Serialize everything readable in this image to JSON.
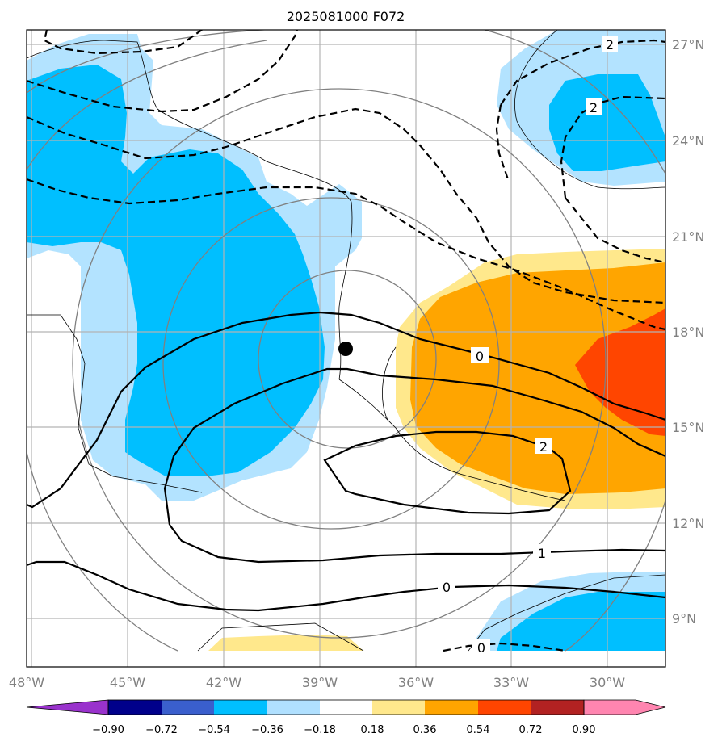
{
  "title": "2025081000 F072",
  "map": {
    "lon_ticks": [
      "48°W",
      "45°W",
      "42°W",
      "39°W",
      "36°W",
      "33°W",
      "30°W"
    ],
    "lat_ticks": [
      "27°N",
      "24°N",
      "21°N",
      "18°N",
      "15°N",
      "12°N",
      "9°N"
    ],
    "lon_range": [
      -48,
      -28
    ],
    "lat_range": [
      7.5,
      27.5
    ],
    "grid": true,
    "storm_center": {
      "lon": -38.2,
      "lat": 17.4
    },
    "contour_labels": [
      {
        "text": "2",
        "lon": -30.1,
        "lat": 26.9
      },
      {
        "text": "2",
        "lon": -30.5,
        "lat": 25.0
      },
      {
        "text": "0",
        "lon": -34.0,
        "lat": 17.1
      },
      {
        "text": "2",
        "lon": -32.0,
        "lat": 14.4
      },
      {
        "text": "1",
        "lon": -32.1,
        "lat": 11.1
      },
      {
        "text": "0",
        "lon": -36.0,
        "lat": 10.0
      },
      {
        "text": "0",
        "lon": -34.0,
        "lat": 8.1
      }
    ]
  },
  "colorbar": {
    "labels": [
      "−0.90",
      "−0.72",
      "−0.54",
      "−0.36",
      "−0.18",
      "0.18",
      "0.36",
      "0.54",
      "0.72",
      "0.90"
    ],
    "colors": [
      "#9932cc",
      "#00008b",
      "#3a5fcd",
      "#00bfff",
      "#b0e0ff",
      "#ffffff",
      "#ffe88c",
      "#ffa500",
      "#ff4500",
      "#b22222",
      "#ff85b0"
    ]
  }
}
